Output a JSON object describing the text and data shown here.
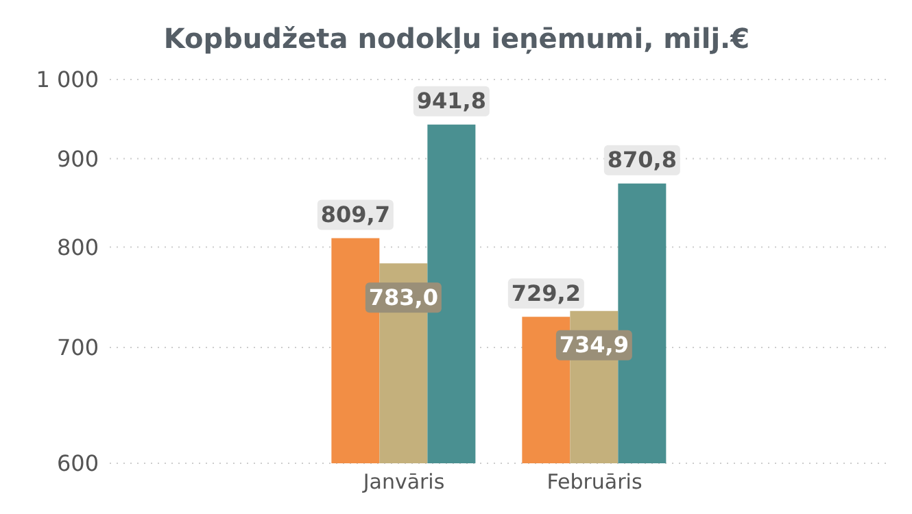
{
  "chart_data": {
    "type": "bar",
    "title": "Kopbudžeta nodokļu ieņēmumi, milj.€",
    "categories": [
      "Janvāris",
      "Februāris"
    ],
    "series": [
      {
        "color": "#f28e45",
        "values": [
          809.7,
          729.2
        ],
        "value_labels": [
          "809,7",
          "729,2"
        ]
      },
      {
        "color": "#c4b07c",
        "values": [
          783.0,
          734.9
        ],
        "value_labels": [
          "783,0",
          "734,9"
        ]
      },
      {
        "color": "#4a9091",
        "values": [
          941.8,
          870.8
        ],
        "value_labels": [
          "941,8",
          "870,8"
        ]
      }
    ],
    "log": "y",
    "ylim": [
      600,
      1000
    ],
    "yticks": [
      600,
      700,
      800,
      900,
      {
        "value": 1000,
        "label": "1 000"
      }
    ],
    "grid": "y"
  }
}
